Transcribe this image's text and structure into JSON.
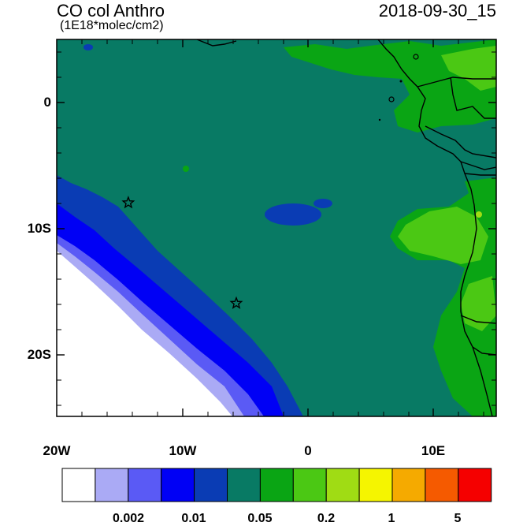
{
  "title": {
    "main": "CO col Anthro",
    "units": "(1E18*molec/cm2)",
    "time": "2018-09-30_15"
  },
  "map": {
    "lon_range": [
      -20,
      15
    ],
    "lat_range": [
      -25,
      5
    ],
    "x_ticks": [
      "20W",
      "10W",
      "0",
      "10E"
    ],
    "y_ticks": [
      "0",
      "10S",
      "20S"
    ],
    "markers": [
      {
        "name": "star-marker-1",
        "lon": -14.3,
        "lat": -8.0
      },
      {
        "name": "star-marker-2",
        "lon": -5.7,
        "lat": -16.0
      }
    ],
    "colors": {
      "c0": "#ffffff",
      "c1": "#aaaaf5",
      "c2": "#5a5af5",
      "c3": "#0000f5",
      "c4": "#0a3cb4",
      "c5": "#087a64",
      "c6": "#0aa514",
      "c7": "#4bc814",
      "c8": "#a0dc14",
      "c9": "#f5f500",
      "c10": "#f5aa00",
      "c11": "#f55a00",
      "c12": "#f50000"
    }
  },
  "colorbar": {
    "colors": [
      "#ffffff",
      "#aaaaf5",
      "#5a5af5",
      "#0000f5",
      "#0a3cb4",
      "#087a64",
      "#0aa514",
      "#4bc814",
      "#a0dc14",
      "#f5f500",
      "#f5aa00",
      "#f55a00",
      "#f50000"
    ],
    "labels": [
      "0.002",
      "0.01",
      "0.05",
      "0.2",
      "1",
      "5"
    ]
  }
}
